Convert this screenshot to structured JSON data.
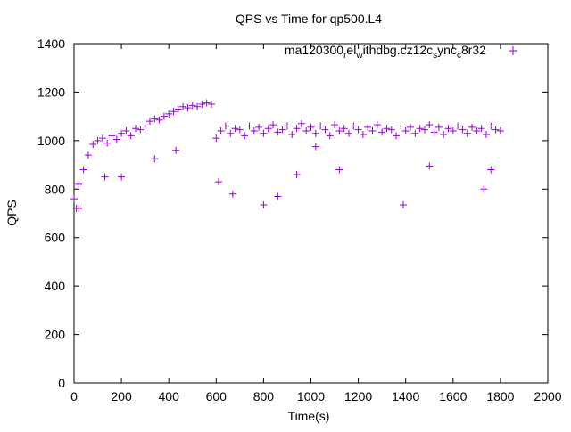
{
  "chart_data": {
    "type": "scatter",
    "title": "QPS vs Time for qp500.L4",
    "xlabel": "Time(s)",
    "ylabel": "QPS",
    "xlim": [
      0,
      2000
    ],
    "ylim": [
      0,
      1400
    ],
    "xticks": [
      "0",
      "200",
      "400",
      "600",
      "800",
      "1000",
      "1200",
      "1400",
      "1600",
      "1800",
      "2000"
    ],
    "yticks": [
      "0",
      "200",
      "400",
      "600",
      "800",
      "1000",
      "1200",
      "1400"
    ],
    "grid": false,
    "legend_position": "top-right",
    "legend_parts": [
      "ma120300",
      "r",
      "el",
      "w",
      "ithdbg.cz12c",
      "s",
      "ync",
      "c",
      "8r32"
    ],
    "color": "#9400d3",
    "series": [
      {
        "name": "ma120300_rel_withdbg.cz12c_sync_c8r32",
        "x": [
          0,
          20,
          40,
          60,
          80,
          100,
          120,
          140,
          160,
          180,
          200,
          220,
          240,
          260,
          280,
          300,
          320,
          340,
          360,
          380,
          400,
          420,
          440,
          460,
          480,
          500,
          520,
          540,
          560,
          580,
          600,
          620,
          640,
          660,
          680,
          700,
          720,
          740,
          760,
          780,
          800,
          820,
          840,
          860,
          880,
          900,
          920,
          940,
          960,
          980,
          1000,
          1020,
          1040,
          1060,
          1080,
          1100,
          1120,
          1140,
          1160,
          1180,
          1200,
          1220,
          1240,
          1260,
          1280,
          1300,
          1320,
          1340,
          1360,
          1380,
          1400,
          1420,
          1440,
          1460,
          1480,
          1500,
          1520,
          1540,
          1560,
          1580,
          1600,
          1620,
          1640,
          1660,
          1680,
          1700,
          1720,
          1740,
          1760,
          1780,
          1800,
          10,
          20,
          130,
          200,
          340,
          430,
          610,
          670,
          800,
          860,
          940,
          1020,
          1120,
          1390,
          1500,
          1730,
          1760
        ],
        "y": [
          760,
          820,
          880,
          940,
          985,
          1000,
          1010,
          990,
          1020,
          1005,
          1030,
          1040,
          1020,
          1050,
          1045,
          1060,
          1080,
          1090,
          1085,
          1100,
          1110,
          1120,
          1130,
          1140,
          1135,
          1145,
          1140,
          1150,
          1155,
          1150,
          1010,
          1040,
          1060,
          1030,
          1050,
          1045,
          1020,
          1060,
          1040,
          1055,
          1030,
          1050,
          1065,
          1035,
          1045,
          1060,
          1025,
          1050,
          1070,
          1040,
          1055,
          1030,
          1060,
          1045,
          1020,
          1065,
          1040,
          1050,
          1030,
          1060,
          1045,
          1025,
          1055,
          1040,
          1065,
          1035,
          1050,
          1045,
          1020,
          1060,
          1040,
          1055,
          1030,
          1050,
          1045,
          1065,
          1035,
          1055,
          1025,
          1050,
          1040,
          1060,
          1045,
          1030,
          1055,
          1040,
          1050,
          1025,
          1060,
          1045,
          1040,
          720,
          720,
          850,
          850,
          925,
          960,
          830,
          780,
          735,
          770,
          860,
          975,
          880,
          735,
          895,
          800,
          880
        ]
      }
    ]
  }
}
